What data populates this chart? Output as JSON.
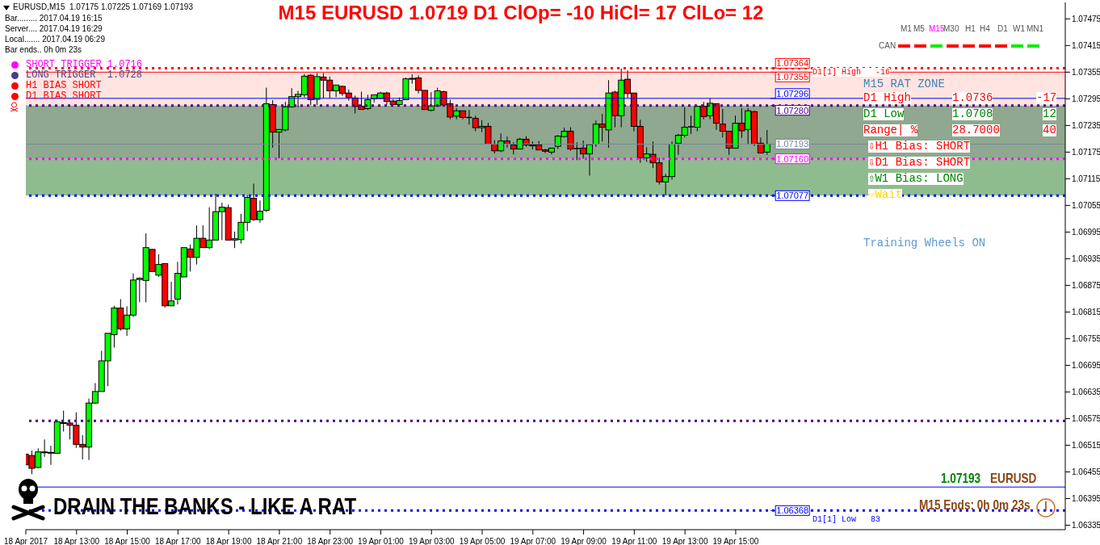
{
  "chart_data": {
    "type": "candlestick",
    "title": "M15 EURUSD 1.0719  D1 ClOp= -10 HiCl= 17 ClLo= 12",
    "x": [
      "2017-04-18T11:00",
      "2017-04-18T11:15",
      "2017-04-18T11:30",
      "2017-04-18T11:45",
      "2017-04-18T12:00",
      "2017-04-18T12:15",
      "2017-04-18T12:30",
      "2017-04-18T12:45",
      "2017-04-18T13:00",
      "2017-04-18T13:15",
      "2017-04-18T13:30",
      "2017-04-18T13:45",
      "2017-04-18T14:00",
      "2017-04-18T14:15",
      "2017-04-18T14:30",
      "2017-04-18T14:45",
      "2017-04-18T15:00",
      "2017-04-18T15:15",
      "2017-04-18T15:30",
      "2017-04-18T15:45",
      "2017-04-18T16:00",
      "2017-04-18T16:15",
      "2017-04-18T16:30",
      "2017-04-18T16:45",
      "2017-04-18T17:00",
      "2017-04-18T17:15",
      "2017-04-18T17:30",
      "2017-04-18T17:45",
      "2017-04-18T18:00",
      "2017-04-18T18:15",
      "2017-04-18T18:30",
      "2017-04-18T18:45",
      "2017-04-18T19:00",
      "2017-04-18T19:15",
      "2017-04-18T19:30",
      "2017-04-18T19:45",
      "2017-04-18T20:00",
      "2017-04-18T20:15",
      "2017-04-18T20:30",
      "2017-04-18T20:45",
      "2017-04-18T21:00",
      "2017-04-18T21:15",
      "2017-04-18T21:30",
      "2017-04-18T21:45",
      "2017-04-18T22:00",
      "2017-04-18T22:15",
      "2017-04-18T22:30",
      "2017-04-18T22:45",
      "2017-04-18T23:00",
      "2017-04-18T23:15",
      "2017-04-18T23:30",
      "2017-04-18T23:45",
      "2017-04-19T00:00",
      "2017-04-19T00:15",
      "2017-04-19T00:30",
      "2017-04-19T00:45",
      "2017-04-19T01:00",
      "2017-04-19T01:15",
      "2017-04-19T01:30",
      "2017-04-19T01:45",
      "2017-04-19T02:00",
      "2017-04-19T02:15",
      "2017-04-19T02:30",
      "2017-04-19T02:45",
      "2017-04-19T03:00",
      "2017-04-19T03:15",
      "2017-04-19T03:30",
      "2017-04-19T03:45",
      "2017-04-19T04:00",
      "2017-04-19T04:15",
      "2017-04-19T04:30",
      "2017-04-19T04:45",
      "2017-04-19T05:00",
      "2017-04-19T05:15",
      "2017-04-19T05:30",
      "2017-04-19T05:45",
      "2017-04-19T06:00",
      "2017-04-19T06:15",
      "2017-04-19T06:30",
      "2017-04-19T06:45",
      "2017-04-19T07:00",
      "2017-04-19T07:15",
      "2017-04-19T07:30",
      "2017-04-19T07:45",
      "2017-04-19T08:00",
      "2017-04-19T08:15",
      "2017-04-19T08:30",
      "2017-04-19T08:45",
      "2017-04-19T09:00",
      "2017-04-19T09:15",
      "2017-04-19T09:30",
      "2017-04-19T09:45",
      "2017-04-19T10:00",
      "2017-04-19T10:15",
      "2017-04-19T10:30",
      "2017-04-19T10:45",
      "2017-04-19T11:00",
      "2017-04-19T11:15",
      "2017-04-19T11:30",
      "2017-04-19T11:45",
      "2017-04-19T12:00",
      "2017-04-19T12:15",
      "2017-04-19T12:30",
      "2017-04-19T12:45",
      "2017-04-19T13:00",
      "2017-04-19T13:15",
      "2017-04-19T13:30",
      "2017-04-19T13:45",
      "2017-04-19T14:00",
      "2017-04-19T14:15",
      "2017-04-19T14:30",
      "2017-04-19T14:45",
      "2017-04-19T15:00",
      "2017-04-19T15:15",
      "2017-04-19T15:30",
      "2017-04-19T15:45",
      "2017-04-19T16:00",
      "2017-04-19T16:15"
    ],
    "ohlc": [
      [
        1.06495,
        1.06499,
        1.06467,
        1.06471
      ],
      [
        1.06492,
        1.06503,
        1.0645,
        1.06463
      ],
      [
        1.06465,
        1.06508,
        1.06463,
        1.065
      ],
      [
        1.06499,
        1.06528,
        1.06489,
        1.065
      ],
      [
        1.06498,
        1.06514,
        1.06471,
        1.06499
      ],
      [
        1.06497,
        1.06573,
        1.06497,
        1.06568
      ],
      [
        1.06566,
        1.06593,
        1.06546,
        1.06565
      ],
      [
        1.06565,
        1.06573,
        1.06528,
        1.0656
      ],
      [
        1.0656,
        1.06589,
        1.06509,
        1.06517
      ],
      [
        1.06517,
        1.06538,
        1.06483,
        1.06511
      ],
      [
        1.06511,
        1.0662,
        1.06482,
        1.0661
      ],
      [
        1.0661,
        1.06655,
        1.06608,
        1.06636
      ],
      [
        1.06636,
        1.06728,
        1.06636,
        1.06705
      ],
      [
        1.06705,
        1.06767,
        1.06648,
        1.06767
      ],
      [
        1.06764,
        1.06829,
        1.06735,
        1.06824
      ],
      [
        1.06824,
        1.06844,
        1.06773,
        1.06777
      ],
      [
        1.06777,
        1.06828,
        1.06761,
        1.06808
      ],
      [
        1.06808,
        1.06902,
        1.06804,
        1.06887
      ],
      [
        1.06888,
        1.06893,
        1.06837,
        1.06891
      ],
      [
        1.06886,
        1.06992,
        1.06837,
        1.0696
      ],
      [
        1.06956,
        1.06956,
        1.06906,
        1.06906
      ],
      [
        1.06898,
        1.06945,
        1.06894,
        1.06922
      ],
      [
        1.06924,
        1.06924,
        1.06825,
        1.06829
      ],
      [
        1.06829,
        1.06883,
        1.06828,
        1.0684
      ],
      [
        1.06844,
        1.06928,
        1.06832,
        1.06902
      ],
      [
        1.06894,
        1.0696,
        1.06894,
        1.0696
      ],
      [
        1.06957,
        1.06967,
        1.06906,
        1.06938
      ],
      [
        1.06938,
        1.0701,
        1.06922,
        1.06981
      ],
      [
        1.06981,
        1.0701,
        1.0696,
        1.0696
      ],
      [
        1.0696,
        1.07051,
        1.06957,
        1.06977
      ],
      [
        1.06977,
        1.07081,
        1.06977,
        1.07041
      ],
      [
        1.07041,
        1.07061,
        1.06977,
        1.07051
      ],
      [
        1.0705,
        1.07057,
        1.06977,
        1.06977
      ],
      [
        1.06977,
        1.06996,
        1.06959,
        1.0698
      ],
      [
        1.06978,
        1.07036,
        1.06969,
        1.07017
      ],
      [
        1.07017,
        1.07078,
        1.06997,
        1.07073
      ],
      [
        1.07071,
        1.07104,
        1.0702,
        1.07023
      ],
      [
        1.07023,
        1.07066,
        1.07016,
        1.07042
      ],
      [
        1.07044,
        1.0732,
        1.0704,
        1.07284
      ],
      [
        1.07282,
        1.07292,
        1.07185,
        1.0722
      ],
      [
        1.0722,
        1.07226,
        1.07161,
        1.07226
      ],
      [
        1.07225,
        1.07288,
        1.07222,
        1.07277
      ],
      [
        1.07277,
        1.07319,
        1.07275,
        1.073
      ],
      [
        1.073,
        1.07313,
        1.07276,
        1.07305
      ],
      [
        1.07304,
        1.07351,
        1.07298,
        1.07346
      ],
      [
        1.07348,
        1.07351,
        1.07281,
        1.07293
      ],
      [
        1.07294,
        1.07353,
        1.07281,
        1.07345
      ],
      [
        1.07344,
        1.07353,
        1.07296,
        1.07337
      ],
      [
        1.07337,
        1.07345,
        1.07296,
        1.07313
      ],
      [
        1.07313,
        1.07326,
        1.07299,
        1.07326
      ],
      [
        1.07323,
        1.07325,
        1.07302,
        1.07307
      ],
      [
        1.07308,
        1.07316,
        1.07291,
        1.07298
      ],
      [
        1.07297,
        1.07302,
        1.07262,
        1.07278
      ],
      [
        1.07278,
        1.07311,
        1.07271,
        1.07271
      ],
      [
        1.07273,
        1.07304,
        1.0727,
        1.07293
      ],
      [
        1.07295,
        1.07304,
        1.07287,
        1.07304
      ],
      [
        1.07296,
        1.07311,
        1.07294,
        1.07308
      ],
      [
        1.07308,
        1.07311,
        1.07281,
        1.07289
      ],
      [
        1.0729,
        1.07294,
        1.0728,
        1.07282
      ],
      [
        1.07282,
        1.07298,
        1.0728,
        1.07291
      ],
      [
        1.07293,
        1.07343,
        1.07292,
        1.0734
      ],
      [
        1.0734,
        1.0735,
        1.07329,
        1.07341
      ],
      [
        1.07342,
        1.07348,
        1.07307,
        1.07314
      ],
      [
        1.07314,
        1.07314,
        1.0727,
        1.07271
      ],
      [
        1.07269,
        1.0731,
        1.07267,
        1.07279
      ],
      [
        1.07279,
        1.0732,
        1.07277,
        1.07313
      ],
      [
        1.07311,
        1.07313,
        1.0728,
        1.07281
      ],
      [
        1.07284,
        1.07293,
        1.07249,
        1.07254
      ],
      [
        1.07256,
        1.07274,
        1.07249,
        1.07268
      ],
      [
        1.07268,
        1.07268,
        1.07249,
        1.07253
      ],
      [
        1.07253,
        1.0727,
        1.07237,
        1.07253
      ],
      [
        1.07251,
        1.07257,
        1.07222,
        1.0723
      ],
      [
        1.0723,
        1.07247,
        1.0722,
        1.07233
      ],
      [
        1.07233,
        1.07241,
        1.07193,
        1.07193
      ],
      [
        1.07193,
        1.07202,
        1.07172,
        1.07178
      ],
      [
        1.07178,
        1.07217,
        1.07175,
        1.072
      ],
      [
        1.072,
        1.0721,
        1.07185,
        1.07193
      ],
      [
        1.07191,
        1.07197,
        1.0717,
        1.07182
      ],
      [
        1.07182,
        1.07207,
        1.07181,
        1.07204
      ],
      [
        1.07204,
        1.07211,
        1.07187,
        1.07191
      ],
      [
        1.07191,
        1.07199,
        1.07181,
        1.0719
      ],
      [
        1.07191,
        1.072,
        1.0718,
        1.0718
      ],
      [
        1.0718,
        1.07182,
        1.07173,
        1.07177
      ],
      [
        1.07175,
        1.07184,
        1.0717,
        1.07184
      ],
      [
        1.07188,
        1.07213,
        1.07182,
        1.07211
      ],
      [
        1.0721,
        1.0723,
        1.07208,
        1.07222
      ],
      [
        1.07222,
        1.07231,
        1.07178,
        1.07182
      ],
      [
        1.07183,
        1.07197,
        1.07157,
        1.07183
      ],
      [
        1.07184,
        1.07201,
        1.0716,
        1.07171
      ],
      [
        1.07171,
        1.07193,
        1.07122,
        1.07192
      ],
      [
        1.07193,
        1.07246,
        1.07187,
        1.07238
      ],
      [
        1.07238,
        1.07261,
        1.07199,
        1.07231
      ],
      [
        1.07225,
        1.07337,
        1.07185,
        1.07308
      ],
      [
        1.0731,
        1.07313,
        1.07231,
        1.07257
      ],
      [
        1.07257,
        1.07363,
        1.07231,
        1.07337
      ],
      [
        1.07339,
        1.07359,
        1.07297,
        1.07307
      ],
      [
        1.07308,
        1.07308,
        1.07222,
        1.07233
      ],
      [
        1.07233,
        1.07248,
        1.07151,
        1.07162
      ],
      [
        1.07162,
        1.07186,
        1.07153,
        1.07171
      ],
      [
        1.0717,
        1.07199,
        1.07139,
        1.07151
      ],
      [
        1.07151,
        1.07162,
        1.07102,
        1.07108
      ],
      [
        1.07108,
        1.07126,
        1.07078,
        1.0712
      ],
      [
        1.0712,
        1.07199,
        1.07113,
        1.07193
      ],
      [
        1.07195,
        1.07216,
        1.07169,
        1.07213
      ],
      [
        1.07213,
        1.07276,
        1.07208,
        1.07231
      ],
      [
        1.07232,
        1.07257,
        1.07216,
        1.07232
      ],
      [
        1.07231,
        1.07279,
        1.07222,
        1.07278
      ],
      [
        1.07278,
        1.07288,
        1.07249,
        1.07255
      ],
      [
        1.07257,
        1.07296,
        1.07249,
        1.07285
      ],
      [
        1.07284,
        1.07285,
        1.07225,
        1.0724
      ],
      [
        1.07238,
        1.07272,
        1.07208,
        1.07222
      ],
      [
        1.07222,
        1.07222,
        1.07169,
        1.07184
      ],
      [
        1.07184,
        1.07257,
        1.07183,
        1.0724
      ],
      [
        1.0724,
        1.07274,
        1.07207,
        1.07223
      ],
      [
        1.07226,
        1.07274,
        1.07193,
        1.07268
      ],
      [
        1.07266,
        1.07268,
        1.07189,
        1.07193
      ],
      [
        1.07195,
        1.07208,
        1.07173,
        1.07173
      ],
      [
        1.07175,
        1.07225,
        1.07169,
        1.07193
      ]
    ],
    "xlim": [
      "2017-04-18T11:00",
      "2017-04-20T04:00"
    ],
    "xticks": [
      {
        "value": "2017-04-18T11:00",
        "label": "18 Apr 2017"
      },
      {
        "value": "2017-04-18T13:00",
        "label": "18 Apr 13:00"
      },
      {
        "value": "2017-04-18T15:00",
        "label": "18 Apr 15:00"
      },
      {
        "value": "2017-04-18T17:00",
        "label": "18 Apr 17:00"
      },
      {
        "value": "2017-04-18T19:00",
        "label": "18 Apr 19:00"
      },
      {
        "value": "2017-04-18T21:00",
        "label": "18 Apr 21:00"
      },
      {
        "value": "2017-04-18T23:00",
        "label": "18 Apr 23:00"
      },
      {
        "value": "2017-04-19T01:00",
        "label": "19 Apr 01:00"
      },
      {
        "value": "2017-04-19T03:00",
        "label": "19 Apr 03:00"
      },
      {
        "value": "2017-04-19T05:00",
        "label": "19 Apr 05:00"
      },
      {
        "value": "2017-04-19T07:00",
        "label": "19 Apr 07:00"
      },
      {
        "value": "2017-04-19T09:00",
        "label": "19 Apr 09:00"
      },
      {
        "value": "2017-04-19T11:00",
        "label": "19 Apr 11:00"
      },
      {
        "value": "2017-04-19T13:00",
        "label": "19 Apr 13:00"
      },
      {
        "value": "2017-04-19T15:00",
        "label": "19 Apr 15:00"
      }
    ],
    "ylim": [
      1.06325,
      1.07512
    ],
    "yticks": [
      1.06335,
      1.06395,
      1.06455,
      1.06515,
      1.06575,
      1.06635,
      1.06695,
      1.06755,
      1.06815,
      1.06875,
      1.06935,
      1.06995,
      1.07055,
      1.07115,
      1.07175,
      1.07235,
      1.07295,
      1.07355,
      1.07415,
      1.07475
    ],
    "bands": [
      {
        "axis": "y",
        "from": 1.0728,
        "to": 1.07355,
        "label": null,
        "color": "#ffe4e1"
      },
      {
        "axis": "y",
        "from": 1.0716,
        "to": 1.0728,
        "label": null,
        "color": "#8fa88f"
      },
      {
        "axis": "y",
        "from": 1.07077,
        "to": 1.0716,
        "label": null,
        "color": "#8fbc8f"
      }
    ],
    "ref_lines": [
      {
        "axis": "y",
        "value": 1.07364,
        "label": "1.07364",
        "color": "#ff0000",
        "line_style": "dotted"
      },
      {
        "axis": "y",
        "value": 1.07355,
        "label": "1.07355",
        "color": "#ff0000",
        "line_style": "solid"
      },
      {
        "axis": "y",
        "value": 1.07296,
        "label": "1.07296",
        "color": "#0000ff",
        "line_style": "solid"
      },
      {
        "axis": "y",
        "value": 1.0728,
        "label": "1.07280",
        "color": "#4b0082",
        "line_style": "dotted"
      },
      {
        "axis": "y",
        "value": 1.07193,
        "label": "1.07193",
        "color": "#778899",
        "line_style": "solid"
      },
      {
        "axis": "y",
        "value": 1.0716,
        "label": "1.07160",
        "color": "#ff00ff",
        "line_style": "dotted"
      },
      {
        "axis": "y",
        "value": 1.07077,
        "label": "1.07077",
        "color": "#0000ff",
        "line_style": "dotted"
      },
      {
        "axis": "y",
        "value": 1.0657,
        "label": null,
        "color": "#4b0082",
        "line_style": "dotted"
      },
      {
        "axis": "y",
        "value": 1.06421,
        "label": null,
        "color": "#0000ff",
        "line_style": "solid"
      },
      {
        "axis": "y",
        "value": 1.06368,
        "label": "1.06368",
        "color": "#0000ff",
        "line_style": "dotted"
      }
    ],
    "annotations": [
      "EURUSD,M15  1.07175 1.07225 1.07169 1.07193",
      "Bar......... 2017.04.19 16:15",
      "Server.... 2017.04.19 16:29",
      "Local....... 2017.04.19 06:29",
      "Bar ends.. 0h 0m 23s",
      "SHORT TRIGGER 1.0716",
      "LONG TRIGGER  1.0728",
      "H1 BIAS SHORT",
      "D1 BIAS SHORT",
      "D1[1] High   -16",
      "D1[1] Low   83",
      "M1",
      "M5",
      "M15",
      "M30",
      "H1",
      "H4",
      "D1",
      "W1",
      "MN1",
      "CAN",
      "M15 RAT ZONE",
      "D1 High",
      "1.0736",
      "-17",
      "D1 Low",
      "1.0708",
      "12",
      "Range| %",
      "28.7000",
      "40",
      "⇩H1 Bias: SHORT",
      "⇩D1 Bias: SHORT",
      "⇧W1 Bias: LONG",
      "⇨Wait",
      "Training Wheels ON",
      "DRAIN THE BANKS - LIKE A RAT",
      "1.07193",
      "EURUSD",
      "M15 Ends: 0h 0m 23s"
    ]
  }
}
